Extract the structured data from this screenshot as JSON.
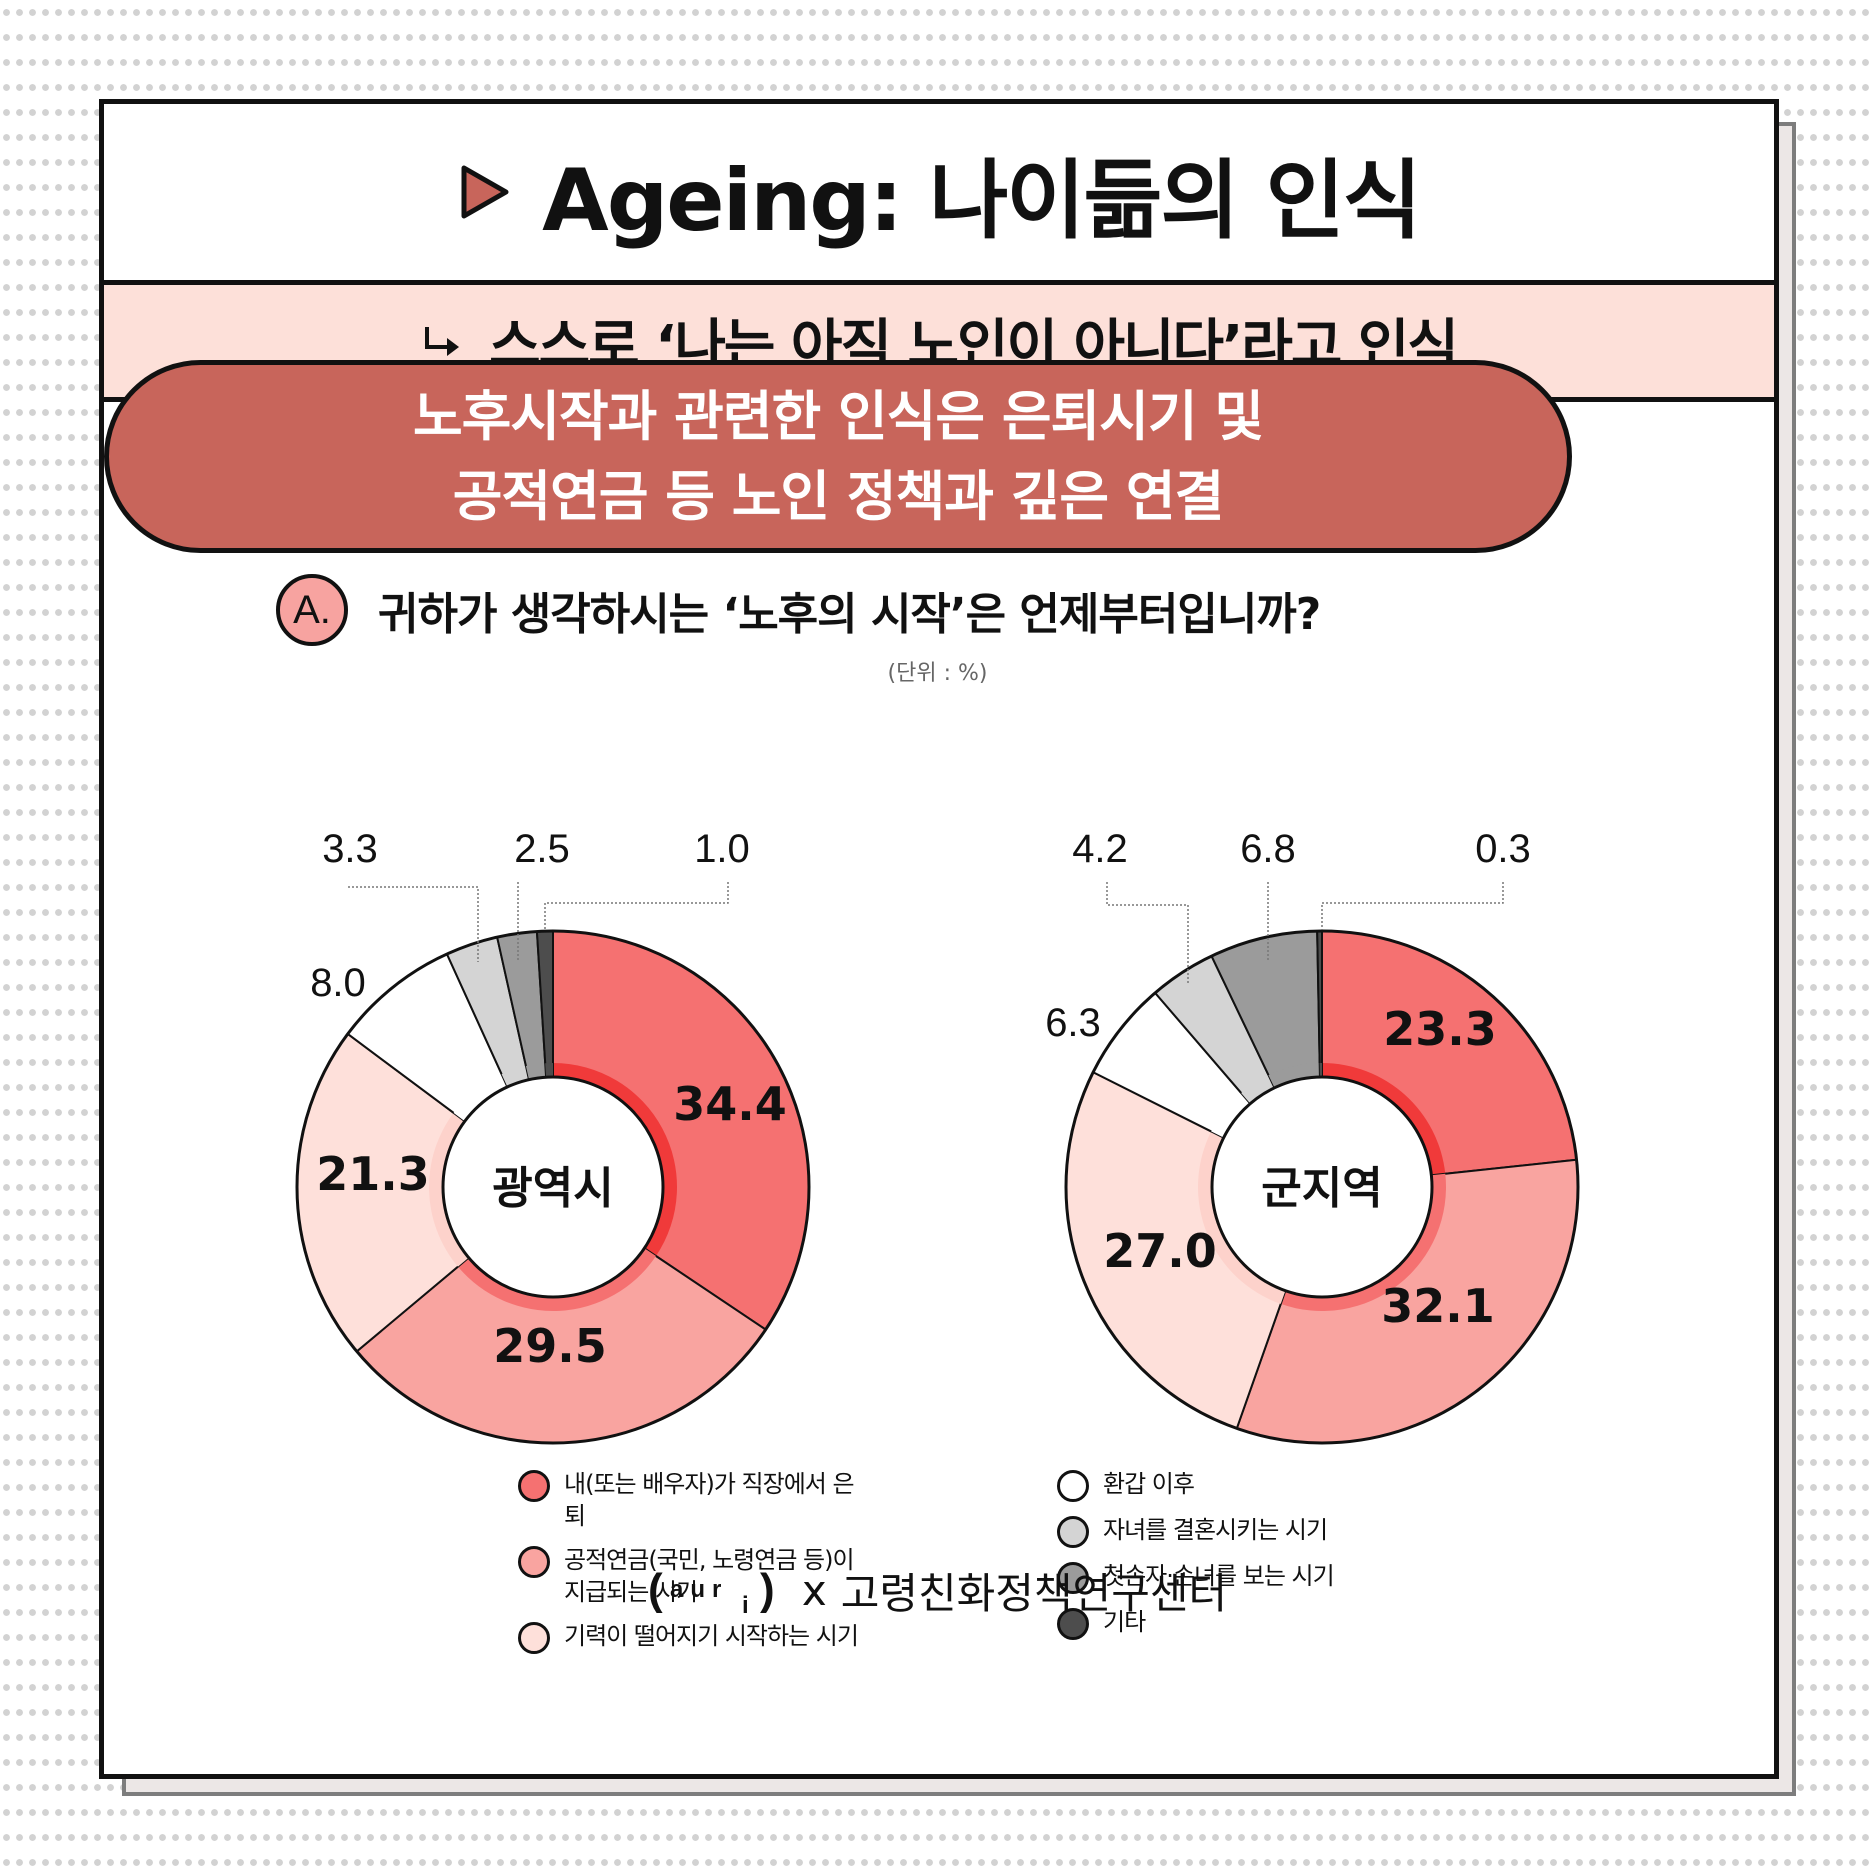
{
  "header": {
    "title": "Ageing: 나이듦의 인식",
    "subtitle": "스스로 ‘나는 아직 노인이 아니다’라고 인식"
  },
  "highlight": {
    "line1": "노후시작과 관련한 인식은 은퇴시기 및",
    "line2": "공적연금 등 노인 정책과 깊은 연결"
  },
  "question": {
    "badge": "A.",
    "text": "귀하가 생각하시는 ‘노후의 시작’은 언제부터입니까?",
    "unit": "(단위 : %)"
  },
  "colors": {
    "retire": "#f57171",
    "pension": "#f9a4a0",
    "stamina": "#fee0da",
    "hwangap": "#ffffff",
    "marriage": "#d4d4d4",
    "grandchild": "#9b9b9b",
    "other": "#4d4d4d",
    "accent": "#c8655b"
  },
  "chart_data": [
    {
      "type": "pie",
      "center_label": "광역시",
      "categories": [
        "내(또는 배우자)가 직장에서 은퇴",
        "공적연금(국민, 노령연금 등)이 지급되는 시기",
        "기력이 떨어지기 시작하는 시기",
        "환갑 이후",
        "자녀를 결혼시키는 시기",
        "첫손자·손녀를 보는 시기",
        "기타"
      ],
      "values": [
        34.4,
        29.5,
        21.3,
        8.0,
        3.3,
        2.5,
        1.0
      ],
      "labels": [
        "34.4",
        "29.5",
        "21.3",
        "8.0",
        "3.3",
        "2.5",
        "1.0"
      ]
    },
    {
      "type": "pie",
      "center_label": "군지역",
      "categories": [
        "내(또는 배우자)가 직장에서 은퇴",
        "공적연금(국민, 노령연금 등)이 지급되는 시기",
        "기력이 떨어지기 시작하는 시기",
        "환갑 이후",
        "자녀를 결혼시키는 시기",
        "첫손자·손녀를 보는 시기",
        "기타"
      ],
      "values": [
        23.3,
        32.1,
        27.0,
        6.3,
        4.2,
        6.8,
        0.3
      ],
      "labels": [
        "23.3",
        "32.1",
        "27.0",
        "6.3",
        "4.2",
        "6.8",
        "0.3"
      ]
    }
  ],
  "legend": {
    "left": [
      {
        "label": "내(또는 배우자)가 직장에서 은퇴",
        "color_key": "retire"
      },
      {
        "label": "공적연금(국민, 노령연금 등)이 지급되는 시기",
        "color_key": "pension"
      },
      {
        "label": "기력이 떨어지기 시작하는 시기",
        "color_key": "stamina"
      }
    ],
    "right": [
      {
        "label": "환갑 이후",
        "color_key": "hwangap"
      },
      {
        "label": "자녀를 결혼시키는 시기",
        "color_key": "marriage"
      },
      {
        "label": "첫손자·손녀를 보는 시기",
        "color_key": "grandchild"
      },
      {
        "label": "기타",
        "color_key": "other"
      }
    ]
  },
  "footer": {
    "logo": "(aur i)",
    "separator": "x",
    "org": "고령친화정책연구센터"
  }
}
